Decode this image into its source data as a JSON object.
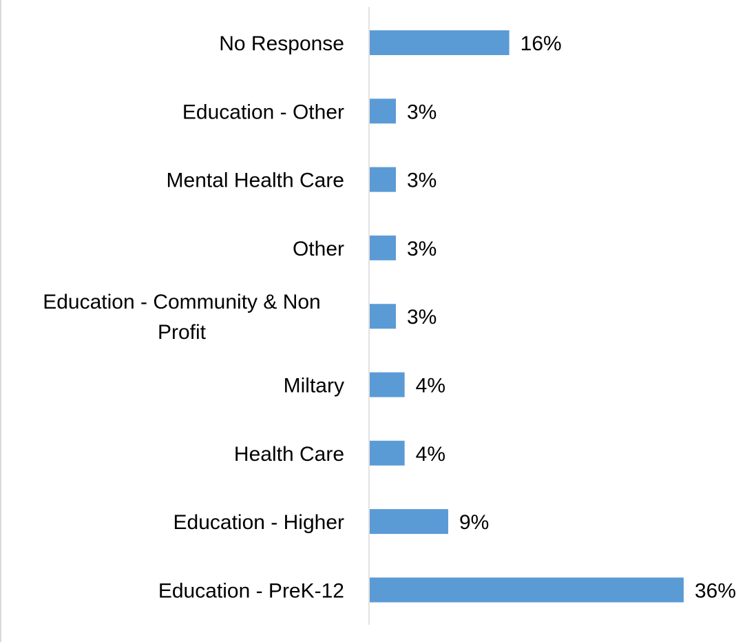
{
  "chart_data": {
    "type": "bar",
    "orientation": "horizontal",
    "title": "",
    "xlabel": "",
    "ylabel": "",
    "grid": false,
    "legend": "none",
    "bar_color": "#5b9bd5",
    "axis_color": "#d9d9d9",
    "value_suffix": "%",
    "categories": [
      "No Response",
      "Education - Other",
      "Mental Health Care",
      "Other",
      "Education - Community & Non Profit",
      "Miltary",
      "Health Care",
      "Education - Higher",
      "Education - PreK-12"
    ],
    "category_lines": [
      [
        "No Response"
      ],
      [
        "Education - Other"
      ],
      [
        "Mental Health Care"
      ],
      [
        "Other"
      ],
      [
        "Education - Community & Non",
        "Profit"
      ],
      [
        "Miltary"
      ],
      [
        "Health Care"
      ],
      [
        "Education - Higher"
      ],
      [
        "Education - PreK-12"
      ]
    ],
    "values": [
      16,
      3,
      3,
      3,
      3,
      4,
      4,
      9,
      36
    ],
    "value_labels": [
      "16%",
      "3%",
      "3%",
      "3%",
      "3%",
      "4%",
      "4%",
      "9%",
      "36%"
    ],
    "xlim": [
      0,
      36
    ]
  }
}
